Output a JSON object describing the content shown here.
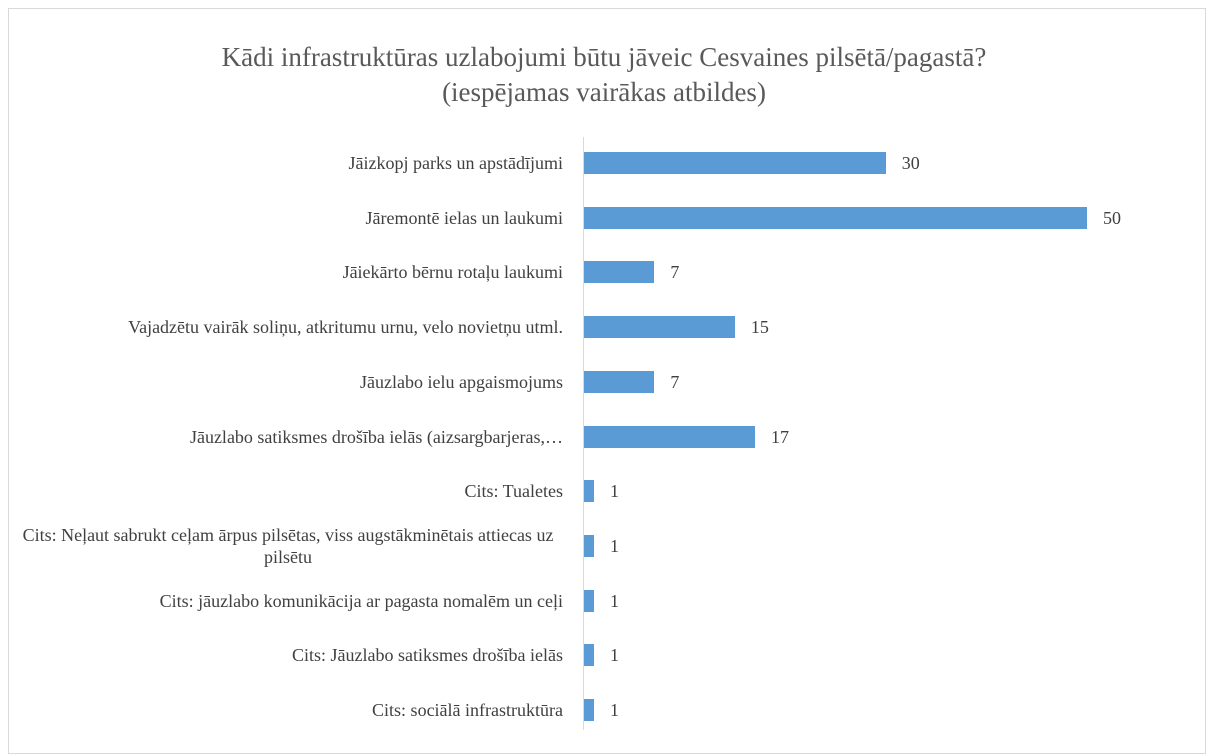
{
  "chart_data": {
    "type": "bar",
    "orientation": "horizontal",
    "title": "Kādi infrastruktūras uzlabojumi būtu jāveic Cesvaines pilsētā/pagastā?",
    "subtitle": "(iespējamas vairākas atbildes)",
    "categories": [
      "Jāizkopj parks un apstādījumi",
      "Jāremontē ielas un laukumi",
      "Jāiekārto bērnu rotaļu laukumi",
      "Vajadzētu vairāk soliņu, atkritumu urnu, velo novietņu utml.",
      "Jāuzlabo ielu apgaismojums",
      "Jāuzlabo satiksmes drošība ielās (aizsargbarjeras,…",
      "Cits: Tualetes",
      "Cits: Neļaut sabrukt ceļam ārpus pilsētas, viss augstākminētais attiecas uz pilsētu",
      "Cits: jāuzlabo komunikācija ar pagasta nomalēm un ceļi",
      "Cits: Jāuzlabo satiksmes drošība ielās",
      "Cits: sociālā infrastruktūra"
    ],
    "values": [
      30,
      50,
      7,
      15,
      7,
      17,
      1,
      1,
      1,
      1,
      1
    ],
    "color": "#5b9bd5"
  }
}
